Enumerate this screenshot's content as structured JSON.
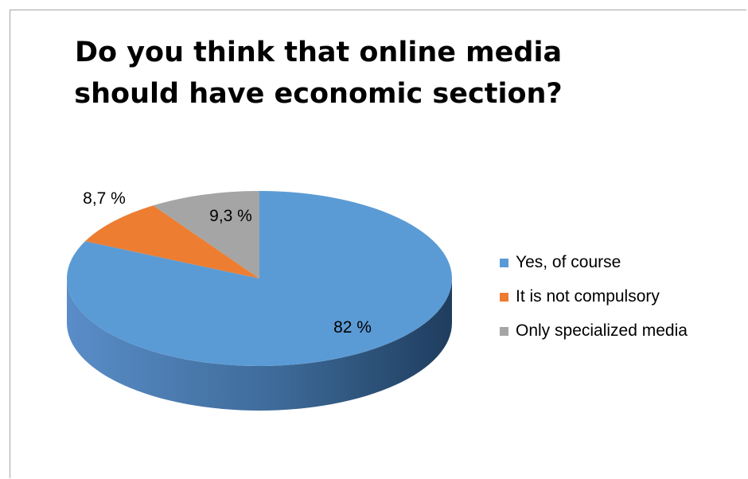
{
  "chart_data": {
    "type": "pie",
    "title_lines": [
      "Do you think that online media",
      "should have economic section?"
    ],
    "categories": [
      "Yes, of course",
      "It is not compulsory",
      "Only specialized media"
    ],
    "values": [
      82,
      8.7,
      9.3
    ],
    "data_labels": [
      "82 %",
      "8,7 %",
      "9,3 %"
    ],
    "colors": [
      "#5b9bd5",
      "#ed7d31",
      "#a5a5a5"
    ],
    "legend_position": "right",
    "style": "3d"
  }
}
